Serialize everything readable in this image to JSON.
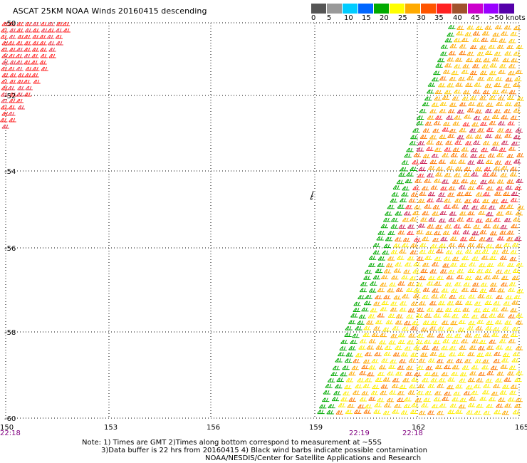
{
  "title": "ASCAT 25KM NOAA Winds 20160415 descending",
  "legend": {
    "colors": [
      "#555555",
      "#999999",
      "#00ccff",
      "#0066ff",
      "#00aa00",
      "#ffff00",
      "#ffaa00",
      "#ff5500",
      "#ff2222",
      "#a0522d",
      "#cc00cc",
      "#9900ff",
      "#5500aa"
    ],
    "labels": [
      "0",
      "5",
      "10",
      "15",
      "20",
      "25",
      "30",
      "35",
      "40",
      "45",
      ">50 knots"
    ]
  },
  "map": {
    "lat_labels": [
      "-50",
      "-52",
      "-54",
      "-56",
      "-58",
      "-60"
    ],
    "lon_labels": [
      "150",
      "153",
      "156",
      "159",
      "162",
      "165"
    ],
    "time_labels": [
      "22:18",
      "22:19",
      "22:18"
    ]
  },
  "notes": {
    "line1": "Note: 1) Times are GMT 2)Times along bottom correspond to measurement at ~55S",
    "line2": "3)Data buffer is 22 hrs from 20160415 4) Black wind barbs indicate possible contamination",
    "line3": "NOAA/NESDIS/Center for Satellite Applications and Research"
  }
}
